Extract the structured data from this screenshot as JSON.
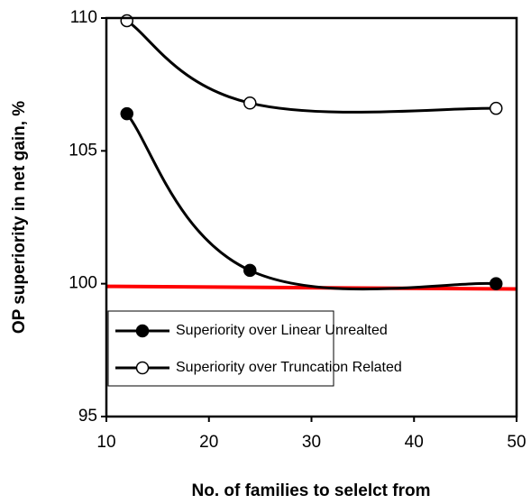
{
  "chart_data": {
    "type": "line",
    "x_label": "No. of families to selelct from",
    "y_label": "OP superiority in net gain, %",
    "x": [
      12,
      24,
      48
    ],
    "series": [
      {
        "name": "Superiority over Linear Unrealted",
        "color": "#000000",
        "marker": "filled",
        "values": [
          106.4,
          100.5,
          100.0
        ]
      },
      {
        "name": "Superiority over Truncation Related",
        "color": "#000000",
        "marker": "open",
        "values": [
          109.9,
          106.8,
          106.6
        ]
      }
    ],
    "reference_line": {
      "x": [
        10,
        50
      ],
      "y": [
        99.9,
        99.8
      ],
      "color": "#ff0000"
    },
    "xlim": [
      10,
      50
    ],
    "xticks": [
      10,
      20,
      30,
      40,
      50
    ],
    "ylim": [
      95,
      110
    ],
    "yticks": [
      95,
      100,
      105,
      110
    ],
    "smooth": true
  }
}
